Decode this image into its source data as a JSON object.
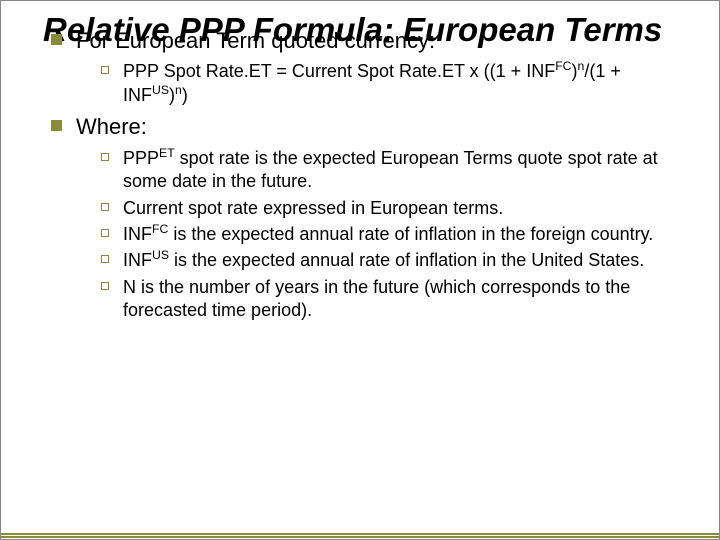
{
  "title": "Relative PPP Formula: European Terms",
  "items": [
    {
      "text": "For European Term quoted currency:",
      "subs": [
        {
          "html": "PPP Spot Rate.ET = Current Spot Rate.ET x ((1 + INF<sup class='s'>FC</sup>)<sup class='s'>n</sup>/(1 + INF<sup class='s'>US</sup>)<sup class='s'>n</sup>)"
        }
      ]
    },
    {
      "text": "Where:",
      "subs": [
        {
          "html": "PPP<sup class='s'>ET</sup> spot rate is the expected European Terms quote spot rate at some date in the future."
        },
        {
          "html": "Current spot rate expressed in European terms."
        },
        {
          "html": "INF<sup class='s'>FC</sup> is the expected annual rate of inflation in the foreign country."
        },
        {
          "html": "INF<sup class='s'>US</sup> is the expected annual rate of inflation in the United States."
        },
        {
          "html": "N is the number of years in the future (which corresponds to the forecasted time period)."
        }
      ]
    }
  ],
  "colors": {
    "accent": "#898b3b",
    "text": "#000000",
    "background": "#ffffff"
  }
}
